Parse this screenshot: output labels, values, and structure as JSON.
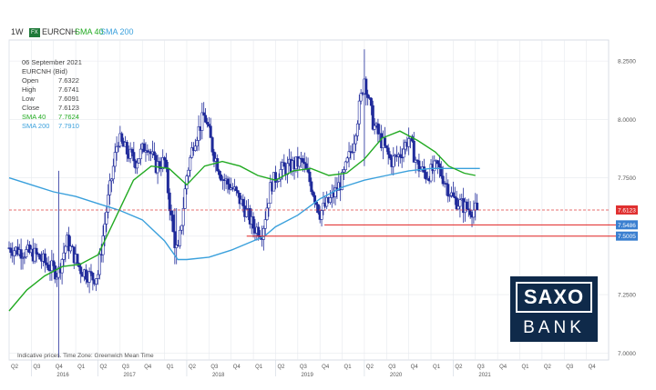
{
  "header": {
    "timeframe": "1W",
    "fx_badge": "FX",
    "symbol": "EURCNH",
    "sma40_label": "SMA 40",
    "sma200_label": "SMA 200"
  },
  "info_panel": {
    "date": "06 September 2021",
    "instrument": "EURCNH (Bid)",
    "rows": [
      {
        "label": "Open",
        "value": "7.6322"
      },
      {
        "label": "High",
        "value": "7.6741"
      },
      {
        "label": "Low",
        "value": "7.6091"
      },
      {
        "label": "Close",
        "value": "7.6123"
      },
      {
        "label": "SMA 40",
        "value": "7.7624"
      },
      {
        "label": "SMA 200",
        "value": "7.7910"
      }
    ]
  },
  "footnote": "Indicative prices. Time Zone: Greenwich Mean Time",
  "logo": {
    "line1": "SAXO",
    "line2": "BANK"
  },
  "colors": {
    "candles": "#1f2a9a",
    "sma40": "#22aa22",
    "sma200": "#3aa0dc",
    "price_line": "#e04040",
    "support": "#e02020",
    "badge_price": "#e03030",
    "badge_support": "#3a7fd0",
    "logo_bg": "#0f2a4a"
  },
  "chart_data": {
    "type": "candlestick",
    "title": "EURCNH",
    "y_axis_side": "right",
    "ylim": [
      6.97,
      8.34
    ],
    "y_ticks": [
      7.0,
      7.25,
      7.5,
      7.75,
      8.0,
      8.25
    ],
    "y_tick_labels": [
      "7.0000",
      "7.2500",
      "7.5000",
      "7.7500",
      "8.0000",
      "8.2500"
    ],
    "x_quarters": [
      "Q2",
      "Q3",
      "Q4",
      "Q1",
      "Q2",
      "Q3",
      "Q4",
      "Q1",
      "Q2",
      "Q3",
      "Q4",
      "Q1",
      "Q2",
      "Q3",
      "Q4",
      "Q1",
      "Q2",
      "Q3",
      "Q4",
      "Q1",
      "Q2",
      "Q3",
      "Q4",
      "Q1",
      "Q2",
      "Q3",
      "Q4"
    ],
    "x_years": [
      {
        "label": "2016",
        "quarter_index": 1
      },
      {
        "label": "2017",
        "quarter_index": 4
      },
      {
        "label": "2018",
        "quarter_index": 8
      },
      {
        "label": "2019",
        "quarter_index": 12
      },
      {
        "label": "2020",
        "quarter_index": 16
      },
      {
        "label": "2021",
        "quarter_index": 20
      }
    ],
    "close_path": [
      [
        0,
        7.45
      ],
      [
        1.2,
        7.42
      ],
      [
        2.2,
        7.34
      ],
      [
        2.6,
        7.48
      ],
      [
        3.2,
        7.36
      ],
      [
        3.8,
        7.32
      ],
      [
        4.0,
        7.34
      ],
      [
        4.4,
        7.62
      ],
      [
        4.9,
        7.92
      ],
      [
        5.3,
        7.86
      ],
      [
        5.7,
        7.82
      ],
      [
        6.2,
        7.9
      ],
      [
        6.6,
        7.8
      ],
      [
        7.0,
        7.82
      ],
      [
        7.4,
        7.5
      ],
      [
        7.6,
        7.42
      ],
      [
        8.0,
        7.76
      ],
      [
        8.3,
        7.9
      ],
      [
        8.8,
        8.02
      ],
      [
        9.2,
        7.86
      ],
      [
        9.6,
        7.75
      ],
      [
        10.1,
        7.7
      ],
      [
        10.6,
        7.62
      ],
      [
        11.0,
        7.54
      ],
      [
        11.4,
        7.52
      ],
      [
        11.8,
        7.72
      ],
      [
        12.2,
        7.78
      ],
      [
        12.7,
        7.8
      ],
      [
        13.2,
        7.82
      ],
      [
        13.6,
        7.72
      ],
      [
        14.0,
        7.6
      ],
      [
        14.5,
        7.66
      ],
      [
        15.0,
        7.74
      ],
      [
        15.5,
        7.9
      ],
      [
        16.0,
        8.18
      ],
      [
        16.4,
        7.98
      ],
      [
        16.8,
        7.9
      ],
      [
        17.2,
        7.82
      ],
      [
        17.6,
        7.85
      ],
      [
        18.0,
        7.92
      ],
      [
        18.4,
        7.8
      ],
      [
        18.8,
        7.76
      ],
      [
        19.3,
        7.8
      ],
      [
        19.6,
        7.74
      ],
      [
        20.0,
        7.66
      ],
      [
        20.6,
        7.62
      ],
      [
        21.1,
        7.61
      ]
    ],
    "extremes": [
      {
        "x": 2.2,
        "high": 7.78,
        "low": 6.98
      },
      {
        "x": 7.5,
        "high": 7.62,
        "low": 7.38
      },
      {
        "x": 16.0,
        "high": 8.3,
        "low": 7.8
      }
    ],
    "sma40": [
      [
        0,
        7.18
      ],
      [
        0.8,
        7.27
      ],
      [
        1.6,
        7.33
      ],
      [
        2.4,
        7.37
      ],
      [
        3.2,
        7.38
      ],
      [
        4.0,
        7.42
      ],
      [
        4.8,
        7.58
      ],
      [
        5.6,
        7.74
      ],
      [
        6.4,
        7.8
      ],
      [
        7.2,
        7.79
      ],
      [
        8.0,
        7.72
      ],
      [
        8.8,
        7.8
      ],
      [
        9.6,
        7.82
      ],
      [
        10.4,
        7.8
      ],
      [
        11.2,
        7.76
      ],
      [
        12.0,
        7.74
      ],
      [
        12.8,
        7.78
      ],
      [
        13.6,
        7.79
      ],
      [
        14.4,
        7.76
      ],
      [
        15.2,
        7.77
      ],
      [
        16.0,
        7.83
      ],
      [
        16.8,
        7.92
      ],
      [
        17.6,
        7.95
      ],
      [
        18.4,
        7.91
      ],
      [
        19.2,
        7.86
      ],
      [
        19.8,
        7.8
      ],
      [
        20.5,
        7.77
      ],
      [
        21.0,
        7.76
      ]
    ],
    "sma200": [
      [
        0,
        7.75
      ],
      [
        1.0,
        7.72
      ],
      [
        2.0,
        7.69
      ],
      [
        3.0,
        7.67
      ],
      [
        4.0,
        7.64
      ],
      [
        5.0,
        7.61
      ],
      [
        6.0,
        7.57
      ],
      [
        7.0,
        7.48
      ],
      [
        7.6,
        7.4
      ],
      [
        8.0,
        7.4
      ],
      [
        9.0,
        7.41
      ],
      [
        10.0,
        7.44
      ],
      [
        11.0,
        7.48
      ],
      [
        11.5,
        7.5
      ],
      [
        12.0,
        7.54
      ],
      [
        13.0,
        7.59
      ],
      [
        14.0,
        7.66
      ],
      [
        15.0,
        7.71
      ],
      [
        16.0,
        7.74
      ],
      [
        17.0,
        7.76
      ],
      [
        18.0,
        7.78
      ],
      [
        19.0,
        7.79
      ],
      [
        20.0,
        7.79
      ],
      [
        21.2,
        7.79
      ]
    ],
    "current_price": {
      "value": 7.6123,
      "label": "7.6123"
    },
    "support_levels": [
      {
        "value": 7.5486,
        "label": "7.5486",
        "x_start": 14.2
      },
      {
        "value": 7.5005,
        "label": "7.5005",
        "x_start": 10.7
      }
    ],
    "grid": true,
    "legend": "top-left"
  }
}
